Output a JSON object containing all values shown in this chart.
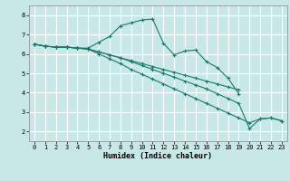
{
  "xlabel": "Humidex (Indice chaleur)",
  "xlim": [
    -0.5,
    23.5
  ],
  "ylim": [
    1.5,
    8.5
  ],
  "xticks": [
    0,
    1,
    2,
    3,
    4,
    5,
    6,
    7,
    8,
    9,
    10,
    11,
    12,
    13,
    14,
    15,
    16,
    17,
    18,
    19,
    20,
    21,
    22,
    23
  ],
  "yticks": [
    2,
    3,
    4,
    5,
    6,
    7,
    8
  ],
  "bg_color": "#c8e8e8",
  "line_color": "#1a7a6a",
  "grid_color": "#ffffff",
  "lines": [
    {
      "x": [
        0,
        1,
        2,
        3,
        4,
        5,
        6,
        7,
        8,
        9,
        10,
        11,
        12,
        13,
        14,
        15,
        16,
        17,
        18,
        19,
        20,
        21,
        22,
        23
      ],
      "y": [
        6.5,
        6.4,
        6.35,
        6.35,
        6.3,
        6.3,
        6.6,
        6.9,
        7.45,
        7.6,
        7.75,
        7.8,
        6.55,
        5.95,
        6.15,
        6.2,
        5.6,
        5.3,
        4.75,
        3.95,
        null,
        null,
        null,
        null
      ]
    },
    {
      "x": [
        0,
        1,
        2,
        3,
        4,
        5,
        6,
        7,
        8,
        9,
        10,
        11,
        12,
        13,
        14,
        15,
        16,
        17,
        18,
        19,
        20,
        21,
        22,
        23
      ],
      "y": [
        6.5,
        6.4,
        6.35,
        6.35,
        6.3,
        6.25,
        6.1,
        5.95,
        5.8,
        5.65,
        5.5,
        5.35,
        5.2,
        5.05,
        4.9,
        4.75,
        4.6,
        4.45,
        4.3,
        4.15,
        null,
        null,
        null,
        null
      ]
    },
    {
      "x": [
        0,
        1,
        2,
        3,
        4,
        5,
        6,
        7,
        8,
        9,
        10,
        11,
        12,
        13,
        14,
        15,
        16,
        17,
        18,
        19,
        20,
        21,
        22,
        23
      ],
      "y": [
        6.5,
        6.4,
        6.35,
        6.35,
        6.3,
        6.25,
        6.1,
        5.95,
        5.8,
        5.6,
        5.4,
        5.2,
        5.0,
        4.8,
        4.6,
        4.4,
        4.2,
        3.95,
        3.7,
        3.45,
        2.15,
        2.65,
        2.7,
        2.55
      ]
    },
    {
      "x": [
        0,
        1,
        2,
        3,
        4,
        5,
        6,
        7,
        8,
        9,
        10,
        11,
        12,
        13,
        14,
        15,
        16,
        17,
        18,
        19,
        20,
        21,
        22,
        23
      ],
      "y": [
        6.5,
        6.4,
        6.35,
        6.35,
        6.3,
        6.25,
        6.0,
        5.75,
        5.5,
        5.2,
        4.95,
        4.7,
        4.45,
        4.2,
        3.95,
        3.7,
        3.45,
        3.2,
        2.95,
        2.7,
        2.45,
        2.65,
        2.7,
        2.55
      ]
    }
  ]
}
